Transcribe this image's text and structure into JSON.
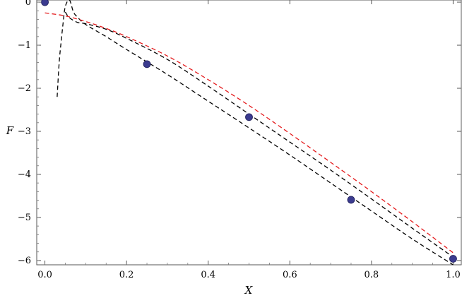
{
  "chart_data": {
    "type": "scatter",
    "xlabel": "X",
    "ylabel": "F",
    "xlim": [
      -0.02,
      1.02
    ],
    "ylim": [
      -6.1,
      0.05
    ],
    "grid": false,
    "x_ticks": [
      {
        "value": 0.0,
        "label": "0.0"
      },
      {
        "value": 0.2,
        "label": "0.2"
      },
      {
        "value": 0.4,
        "label": "0.4"
      },
      {
        "value": 0.6,
        "label": "0.6"
      },
      {
        "value": 0.8,
        "label": "0.8"
      },
      {
        "value": 1.0,
        "label": "1.0"
      }
    ],
    "y_ticks": [
      {
        "value": 0,
        "label": "0"
      },
      {
        "value": -1,
        "label": "−1"
      },
      {
        "value": -2,
        "label": "−2"
      },
      {
        "value": -3,
        "label": "−3"
      },
      {
        "value": -4,
        "label": "−4"
      },
      {
        "value": -5,
        "label": "−5"
      },
      {
        "value": -6,
        "label": "−6"
      }
    ],
    "points": {
      "color": "#3b3b8f",
      "x": [
        0.0,
        0.25,
        0.5,
        0.75,
        1.0
      ],
      "y": [
        0.0,
        -1.44,
        -2.67,
        -4.59,
        -5.96
      ]
    },
    "curves": [
      {
        "color": "#000000",
        "style": "dashed",
        "x": [
          0.05,
          0.06,
          0.08,
          0.1,
          0.15,
          0.2,
          0.3,
          0.4,
          0.5,
          0.6,
          0.7,
          0.8,
          0.9,
          1.0
        ],
        "y": [
          -0.23,
          -0.36,
          -0.47,
          -0.5,
          -0.63,
          -0.84,
          -1.33,
          -1.95,
          -2.6,
          -3.25,
          -3.9,
          -4.57,
          -5.25,
          -5.92
        ]
      },
      {
        "color": "#000000",
        "style": "dashed",
        "x": [
          0.03,
          0.035,
          0.04,
          0.045,
          0.05,
          0.06,
          0.07,
          0.08,
          0.1,
          0.15,
          0.2,
          0.3,
          0.4,
          0.5,
          0.6,
          0.7,
          0.8,
          0.9,
          1.0
        ],
        "y": [
          -2.2,
          -1.4,
          -0.9,
          -0.45,
          -0.1,
          0.05,
          -0.23,
          -0.35,
          -0.52,
          -0.8,
          -1.1,
          -1.68,
          -2.3,
          -2.92,
          -3.55,
          -4.2,
          -4.85,
          -5.5,
          -6.1
        ]
      },
      {
        "color": "#e41a1c",
        "style": "dashed",
        "x": [
          0.0,
          0.05,
          0.1,
          0.15,
          0.2,
          0.3,
          0.4,
          0.5,
          0.6,
          0.7,
          0.8,
          0.9,
          1.0
        ],
        "y": [
          -0.25,
          -0.32,
          -0.45,
          -0.61,
          -0.8,
          -1.25,
          -1.8,
          -2.4,
          -3.05,
          -3.72,
          -4.4,
          -5.1,
          -5.82
        ]
      }
    ]
  }
}
